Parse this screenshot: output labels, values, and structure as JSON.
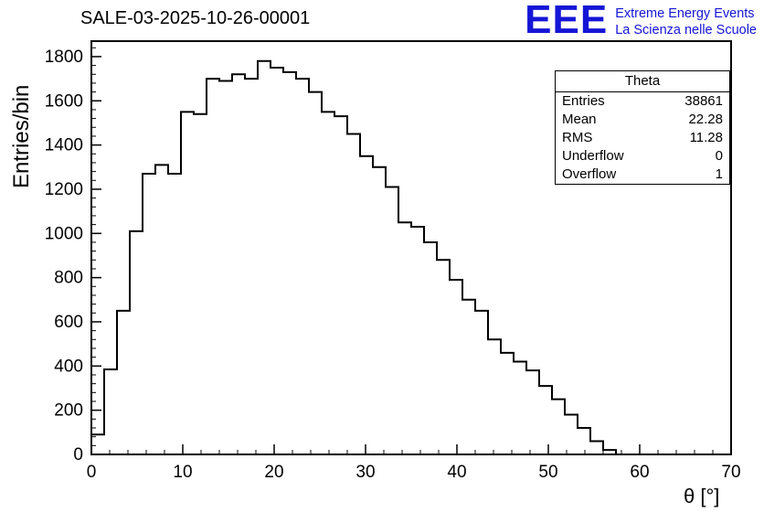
{
  "header": {
    "title": "SALE-03-2025-10-26-00001",
    "logo": {
      "acronym": "EEE",
      "line1": "Extreme Energy Events",
      "line2": "La Scienza nelle Scuole",
      "color": "#1515d6"
    }
  },
  "stats_box": {
    "header": "Theta",
    "rows": [
      {
        "label": "Entries",
        "value": "38861"
      },
      {
        "label": "Mean",
        "value": "22.28"
      },
      {
        "label": "RMS",
        "value": "11.28"
      },
      {
        "label": "Underflow",
        "value": "0"
      },
      {
        "label": "Overflow",
        "value": "1"
      }
    ]
  },
  "chart_data": {
    "type": "bar",
    "subtype": "step-histogram",
    "title": "SALE-03-2025-10-26-00001",
    "xlabel": "θ [°]",
    "ylabel": "Entries/bin",
    "xlim": [
      0,
      70
    ],
    "ylim": [
      0,
      1870
    ],
    "xticks": [
      0,
      10,
      20,
      30,
      40,
      50,
      60,
      70
    ],
    "yticks": [
      0,
      200,
      400,
      600,
      800,
      1000,
      1200,
      1400,
      1600,
      1800
    ],
    "x_minor_step": 2,
    "y_minor_step": 40,
    "grid": false,
    "legend": false,
    "line_color": "#000000",
    "bin_start": 0,
    "bin_width": 1.4,
    "values": [
      90,
      385,
      650,
      1010,
      1270,
      1310,
      1270,
      1550,
      1540,
      1700,
      1690,
      1720,
      1700,
      1780,
      1750,
      1730,
      1700,
      1640,
      1550,
      1530,
      1450,
      1350,
      1300,
      1210,
      1050,
      1030,
      960,
      880,
      790,
      700,
      650,
      520,
      460,
      420,
      380,
      310,
      250,
      180,
      120,
      60,
      20,
      0,
      0,
      0,
      0,
      0,
      0,
      0,
      0,
      0
    ],
    "stats": {
      "name": "Theta",
      "entries": 38861,
      "mean": 22.28,
      "rms": 11.28,
      "underflow": 0,
      "overflow": 1
    }
  }
}
